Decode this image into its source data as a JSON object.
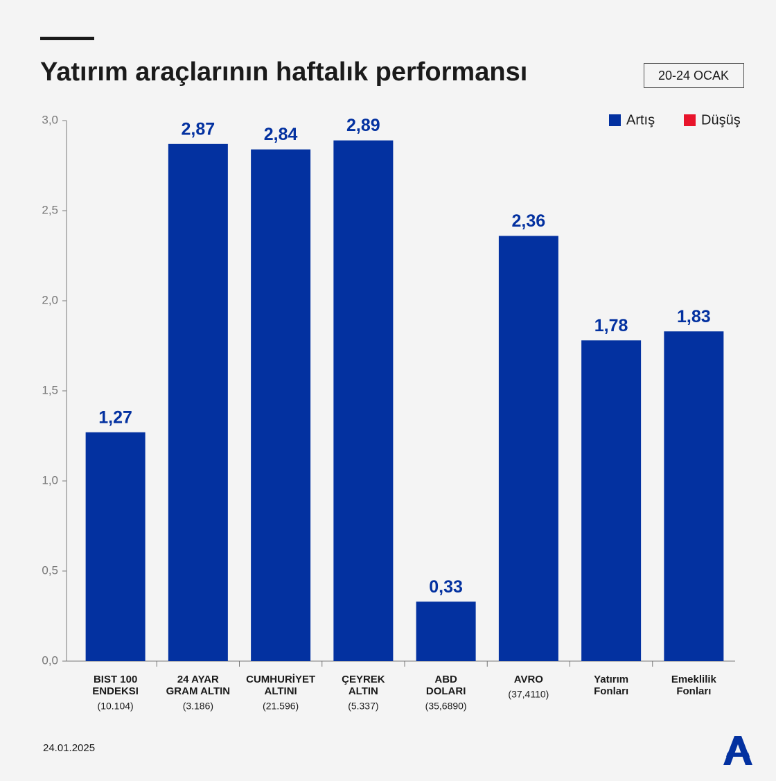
{
  "chart_data": {
    "type": "bar",
    "title": "Yatırım araçlarının haftalık performansı",
    "period": "20-24 OCAK",
    "date": "24.01.2025",
    "categories": [
      [
        "BIST 100",
        "ENDEKSI"
      ],
      [
        "24 AYAR",
        "GRAM ALTIN"
      ],
      [
        "CUMHURİYET",
        "ALTINI"
      ],
      [
        "ÇEYREK",
        "ALTIN"
      ],
      [
        "ABD",
        "DOLARI"
      ],
      [
        "AVRO"
      ],
      [
        "Yatırım",
        "Fonları"
      ],
      [
        "Emeklilik",
        "Fonları"
      ]
    ],
    "category_notes": [
      "(10.104)",
      "(3.186)",
      "(21.596)",
      "(5.337)",
      "(35,6890)",
      "(37,4110)",
      null,
      null
    ],
    "series": [
      {
        "name": "Artış",
        "color": "#0331a0",
        "values": [
          1.27,
          2.87,
          2.84,
          2.89,
          0.33,
          2.36,
          1.78,
          1.83
        ],
        "value_labels": [
          "1,27",
          "2,87",
          "2,84",
          "2,89",
          "0,33",
          "2,36",
          "1,78",
          "1,83"
        ]
      },
      {
        "name": "Düşüş",
        "color": "#e8142b",
        "values": [
          null,
          null,
          null,
          null,
          null,
          null,
          null,
          null
        ]
      }
    ],
    "ylim": [
      0,
      3
    ],
    "yticks": [
      {
        "value": 0,
        "label": "0,0"
      },
      {
        "value": 0.5,
        "label": "0,5"
      },
      {
        "value": 1,
        "label": "1,0"
      },
      {
        "value": 1.5,
        "label": "1,5"
      },
      {
        "value": 2,
        "label": "2,0"
      },
      {
        "value": 2.5,
        "label": "2,5"
      },
      {
        "value": 3,
        "label": "3,0"
      }
    ],
    "grid": false,
    "legend": "top-right"
  }
}
